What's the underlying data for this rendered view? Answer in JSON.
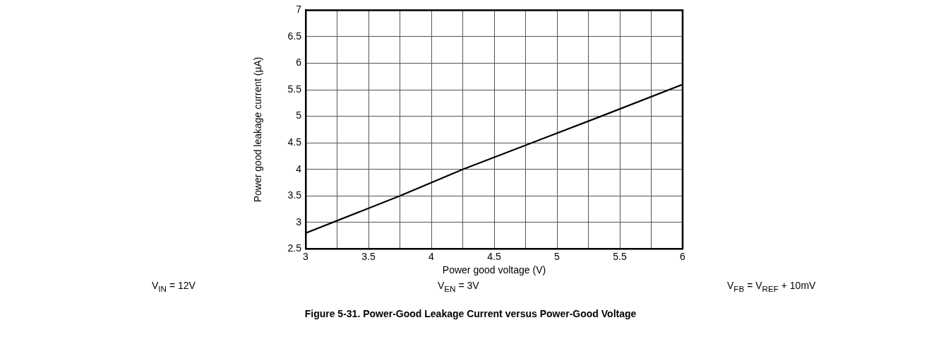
{
  "chart_data": {
    "type": "line",
    "title": "Figure 5-31. Power-Good Leakage Current versus Power-Good Voltage",
    "xlabel": "Power good voltage (V)",
    "ylabel": "Power good leakage current (µA)",
    "x": [
      3,
      3.75,
      4.25,
      5.35,
      6
    ],
    "series": [
      {
        "color": "#000000",
        "values": [
          2.8,
          3.5,
          4.0,
          5.0,
          5.6
        ]
      }
    ],
    "xlim": [
      3,
      6
    ],
    "xticks": [
      3,
      {
        "value": 3.25,
        "label": null
      },
      3.5,
      {
        "value": 3.75,
        "label": null
      },
      4,
      {
        "value": 4.25,
        "label": null
      },
      4.5,
      {
        "value": 4.75,
        "label": null
      },
      5,
      {
        "value": 5.25,
        "label": null
      },
      5.5,
      {
        "value": 5.75,
        "label": null
      },
      6
    ],
    "ylim": [
      2.5,
      7
    ],
    "yticks": [
      2.5,
      3,
      3.5,
      4,
      4.5,
      5,
      5.5,
      6,
      6.5,
      7
    ],
    "grid": true,
    "legend": false,
    "marker": "none",
    "line_style": "solid",
    "annotations": [
      "V$_{IN}$ = 12V",
      "V$_{EN}$ = 3V",
      "V$_{FB}$ = V$_{REF}$ + 10mV"
    ]
  }
}
